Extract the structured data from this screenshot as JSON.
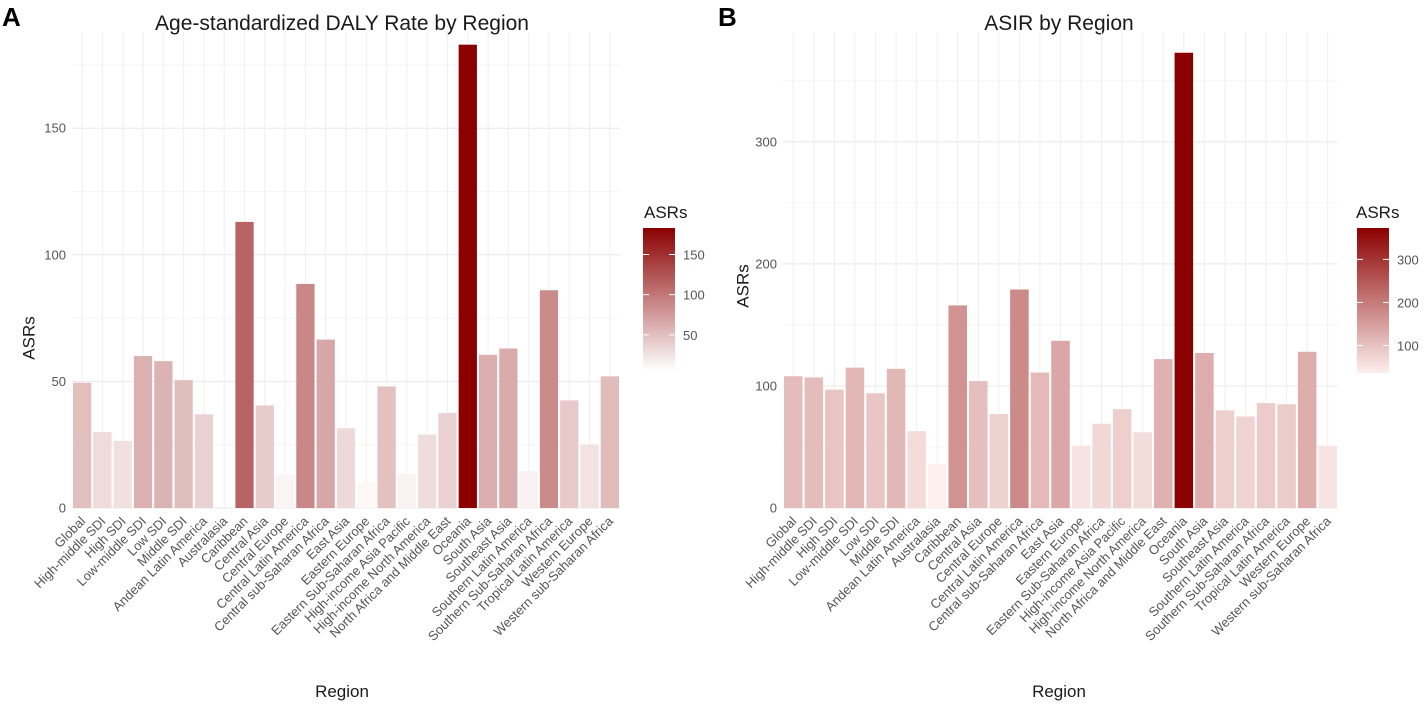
{
  "chart_data": [
    {
      "panel_label": "A",
      "type": "bar",
      "title": "Age-standardized DALY Rate by Region",
      "xlabel": "Region",
      "ylabel": "ASRs",
      "ylim": [
        0,
        188
      ],
      "yticks": [
        0,
        50,
        100,
        150
      ],
      "legend": {
        "title": "ASRs",
        "ticks": [
          50,
          100,
          150
        ],
        "range": [
          5,
          183
        ],
        "placement": "right"
      },
      "color_low": "#ffffff",
      "color_high": "#8b0000",
      "categories": [
        "Global",
        "High-middle SDI",
        "High SDI",
        "Low-middle SDI",
        "Low SDI",
        "Middle SDI",
        "Andean Latin America",
        "Australasia",
        "Caribbean",
        "Central Asia",
        "Central Europe",
        "Central Latin America",
        "Central sub-Saharan Africa",
        "East Asia",
        "Eastern Europe",
        "Eastern Sub-Saharan Africa",
        "High-income Asia Pacific",
        "High-income North America",
        "North Africa and Middle East",
        "Oceania",
        "South Asia",
        "Southeast Asia",
        "Southern Latin America",
        "Southern Sub-Saharan Africa",
        "Tropical Latin America",
        "Western Europe",
        "Western sub-Saharan Africa"
      ],
      "values": [
        49.5,
        30,
        26.5,
        60,
        58,
        50.5,
        37,
        0,
        113,
        40.5,
        13,
        88.5,
        66.5,
        31.5,
        10,
        48,
        13.5,
        29,
        37.5,
        183,
        60.5,
        63,
        14.5,
        86,
        42.5,
        25,
        52
      ]
    },
    {
      "panel_label": "B",
      "type": "bar",
      "title": "ASIR by Region",
      "xlabel": "Region",
      "ylabel": "ASRs",
      "ylim": [
        0,
        390
      ],
      "yticks": [
        0,
        100,
        200,
        300
      ],
      "legend": {
        "title": "ASRs",
        "ticks": [
          100,
          200,
          300
        ],
        "range": [
          36,
          373
        ],
        "placement": "right"
      },
      "color_low": "#fcefed",
      "color_high": "#8b0000",
      "categories": [
        "Global",
        "High-middle SDI",
        "High SDI",
        "Low-middle SDI",
        "Low SDI",
        "Middle SDI",
        "Andean Latin America",
        "Australasia",
        "Caribbean",
        "Central Asia",
        "Central Europe",
        "Central Latin America",
        "Central sub-Saharan Africa",
        "East Asia",
        "Eastern Europe",
        "Eastern Sub-Saharan Africa",
        "High-income Asia Pacific",
        "High-income North America",
        "North Africa and Middle East",
        "Oceania",
        "South Asia",
        "Southeast Asia",
        "Southern Latin America",
        "Southern Sub-Saharan Africa",
        "Tropical Latin America",
        "Western Europe",
        "Western sub-Saharan Africa"
      ],
      "values": [
        108,
        107,
        97,
        115,
        94,
        114,
        63,
        36,
        166,
        104,
        77,
        179,
        111,
        137,
        51,
        69,
        81,
        62,
        122,
        373,
        127,
        80,
        75,
        86,
        85,
        128,
        51
      ]
    }
  ]
}
